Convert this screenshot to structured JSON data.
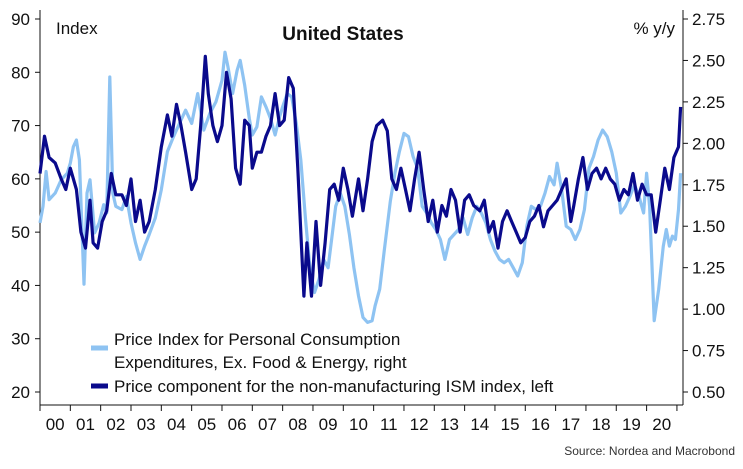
{
  "chart_data": {
    "type": "line",
    "title": "United States",
    "ylabel_left": "Index",
    "ylabel_right": "% y/y",
    "source": "Source: Nordea and Macrobond",
    "left_ylim": [
      20,
      90
    ],
    "right_ylim": [
      0.5,
      2.75
    ],
    "left_ticks": [
      "20",
      "30",
      "40",
      "50",
      "60",
      "70",
      "80",
      "90"
    ],
    "right_ticks": [
      "0.50",
      "0.75",
      "1.00",
      "1.25",
      "1.50",
      "1.75",
      "2.00",
      "2.25",
      "2.50",
      "2.75"
    ],
    "x_ticks": [
      "00",
      "01",
      "02",
      "03",
      "04",
      "05",
      "06",
      "07",
      "08",
      "09",
      "10",
      "11",
      "12",
      "13",
      "14",
      "15",
      "16",
      "17",
      "18",
      "19",
      "20"
    ],
    "xlim": [
      2000.0,
      2021.2
    ],
    "grid": false,
    "legend_position": "bottom-left",
    "series": [
      {
        "name": "Price Index for Personal Consumption Expenditures, Ex. Food & Energy, right",
        "axis": "right",
        "color": "#8ec3f2",
        "points": [
          [
            2000.0,
            1.52
          ],
          [
            2000.1,
            1.62
          ],
          [
            2000.2,
            1.83
          ],
          [
            2000.3,
            1.66
          ],
          [
            2000.5,
            1.7
          ],
          [
            2000.7,
            1.78
          ],
          [
            2000.9,
            1.82
          ],
          [
            2001.0,
            1.88
          ],
          [
            2001.1,
            1.98
          ],
          [
            2001.2,
            2.02
          ],
          [
            2001.3,
            1.9
          ],
          [
            2001.45,
            1.15
          ],
          [
            2001.55,
            1.7
          ],
          [
            2001.65,
            1.78
          ],
          [
            2001.8,
            1.46
          ],
          [
            2001.95,
            1.52
          ],
          [
            2002.1,
            1.63
          ],
          [
            2002.2,
            1.58
          ],
          [
            2002.3,
            2.4
          ],
          [
            2002.4,
            1.7
          ],
          [
            2002.5,
            1.62
          ],
          [
            2002.7,
            1.6
          ],
          [
            2002.85,
            1.68
          ],
          [
            2003.0,
            1.52
          ],
          [
            2003.15,
            1.4
          ],
          [
            2003.3,
            1.3
          ],
          [
            2003.45,
            1.38
          ],
          [
            2003.6,
            1.45
          ],
          [
            2003.8,
            1.55
          ],
          [
            2004.0,
            1.72
          ],
          [
            2004.2,
            1.95
          ],
          [
            2004.4,
            2.04
          ],
          [
            2004.6,
            2.12
          ],
          [
            2004.8,
            2.2
          ],
          [
            2005.0,
            2.12
          ],
          [
            2005.2,
            2.3
          ],
          [
            2005.4,
            2.08
          ],
          [
            2005.6,
            2.18
          ],
          [
            2005.8,
            2.25
          ],
          [
            2006.0,
            2.38
          ],
          [
            2006.1,
            2.55
          ],
          [
            2006.2,
            2.46
          ],
          [
            2006.35,
            2.3
          ],
          [
            2006.5,
            2.44
          ],
          [
            2006.6,
            2.5
          ],
          [
            2006.75,
            2.35
          ],
          [
            2006.9,
            2.15
          ],
          [
            2007.0,
            2.05
          ],
          [
            2007.15,
            2.1
          ],
          [
            2007.3,
            2.28
          ],
          [
            2007.45,
            2.22
          ],
          [
            2007.6,
            2.15
          ],
          [
            2007.75,
            2.05
          ],
          [
            2007.9,
            2.16
          ],
          [
            2008.0,
            2.22
          ],
          [
            2008.15,
            2.3
          ],
          [
            2008.3,
            2.28
          ],
          [
            2008.45,
            2.12
          ],
          [
            2008.6,
            1.9
          ],
          [
            2008.75,
            1.55
          ],
          [
            2008.9,
            1.25
          ],
          [
            2009.05,
            1.1
          ],
          [
            2009.2,
            1.18
          ],
          [
            2009.35,
            1.3
          ],
          [
            2009.5,
            1.25
          ],
          [
            2009.6,
            1.4
          ],
          [
            2009.75,
            1.62
          ],
          [
            2009.9,
            1.7
          ],
          [
            2010.05,
            1.62
          ],
          [
            2010.2,
            1.45
          ],
          [
            2010.35,
            1.25
          ],
          [
            2010.5,
            1.08
          ],
          [
            2010.65,
            0.95
          ],
          [
            2010.8,
            0.92
          ],
          [
            2010.95,
            0.93
          ],
          [
            2011.05,
            1.02
          ],
          [
            2011.2,
            1.12
          ],
          [
            2011.35,
            1.35
          ],
          [
            2011.55,
            1.65
          ],
          [
            2011.7,
            1.82
          ],
          [
            2011.85,
            1.95
          ],
          [
            2012.0,
            2.06
          ],
          [
            2012.15,
            2.04
          ],
          [
            2012.3,
            1.92
          ],
          [
            2012.45,
            1.85
          ],
          [
            2012.6,
            1.62
          ],
          [
            2012.75,
            1.58
          ],
          [
            2012.9,
            1.52
          ],
          [
            2013.05,
            1.48
          ],
          [
            2013.2,
            1.42
          ],
          [
            2013.35,
            1.3
          ],
          [
            2013.5,
            1.42
          ],
          [
            2013.65,
            1.45
          ],
          [
            2013.8,
            1.48
          ],
          [
            2013.95,
            1.55
          ],
          [
            2014.1,
            1.45
          ],
          [
            2014.25,
            1.55
          ],
          [
            2014.4,
            1.62
          ],
          [
            2014.55,
            1.58
          ],
          [
            2014.7,
            1.52
          ],
          [
            2014.85,
            1.42
          ],
          [
            2015.0,
            1.35
          ],
          [
            2015.15,
            1.3
          ],
          [
            2015.3,
            1.28
          ],
          [
            2015.45,
            1.3
          ],
          [
            2015.6,
            1.25
          ],
          [
            2015.75,
            1.2
          ],
          [
            2015.9,
            1.28
          ],
          [
            2016.05,
            1.5
          ],
          [
            2016.2,
            1.62
          ],
          [
            2016.35,
            1.6
          ],
          [
            2016.5,
            1.62
          ],
          [
            2016.65,
            1.7
          ],
          [
            2016.8,
            1.8
          ],
          [
            2016.95,
            1.75
          ],
          [
            2017.05,
            1.88
          ],
          [
            2017.2,
            1.72
          ],
          [
            2017.35,
            1.5
          ],
          [
            2017.5,
            1.48
          ],
          [
            2017.65,
            1.42
          ],
          [
            2017.8,
            1.48
          ],
          [
            2017.95,
            1.6
          ],
          [
            2018.1,
            1.85
          ],
          [
            2018.25,
            1.92
          ],
          [
            2018.4,
            2.02
          ],
          [
            2018.55,
            2.08
          ],
          [
            2018.7,
            2.04
          ],
          [
            2018.85,
            1.95
          ],
          [
            2019.0,
            1.82
          ],
          [
            2019.15,
            1.58
          ],
          [
            2019.3,
            1.62
          ],
          [
            2019.45,
            1.68
          ],
          [
            2019.6,
            1.75
          ],
          [
            2019.75,
            1.68
          ],
          [
            2019.9,
            1.58
          ],
          [
            2020.0,
            1.82
          ],
          [
            2020.1,
            1.62
          ],
          [
            2020.25,
            0.93
          ],
          [
            2020.4,
            1.12
          ],
          [
            2020.55,
            1.38
          ],
          [
            2020.65,
            1.48
          ],
          [
            2020.75,
            1.38
          ],
          [
            2020.85,
            1.44
          ],
          [
            2020.95,
            1.42
          ],
          [
            2021.05,
            1.6
          ],
          [
            2021.12,
            1.82
          ]
        ]
      },
      {
        "name": "Price component for the non-manufacturing ISM index, left",
        "axis": "left",
        "color": "#0a0a8c",
        "points": [
          [
            2000.0,
            61
          ],
          [
            2000.15,
            68
          ],
          [
            2000.3,
            64
          ],
          [
            2000.5,
            63
          ],
          [
            2000.7,
            60
          ],
          [
            2000.85,
            58
          ],
          [
            2001.0,
            62
          ],
          [
            2001.2,
            58
          ],
          [
            2001.35,
            50
          ],
          [
            2001.5,
            47
          ],
          [
            2001.65,
            56
          ],
          [
            2001.75,
            48
          ],
          [
            2001.9,
            47
          ],
          [
            2002.05,
            52
          ],
          [
            2002.2,
            54
          ],
          [
            2002.35,
            61
          ],
          [
            2002.5,
            57
          ],
          [
            2002.7,
            57
          ],
          [
            2002.85,
            55
          ],
          [
            2003.0,
            60
          ],
          [
            2003.15,
            52
          ],
          [
            2003.3,
            56
          ],
          [
            2003.45,
            50
          ],
          [
            2003.6,
            52
          ],
          [
            2003.8,
            58
          ],
          [
            2004.0,
            66
          ],
          [
            2004.2,
            72
          ],
          [
            2004.35,
            68
          ],
          [
            2004.5,
            74
          ],
          [
            2004.65,
            70
          ],
          [
            2004.8,
            65
          ],
          [
            2005.0,
            58
          ],
          [
            2005.15,
            60
          ],
          [
            2005.3,
            70
          ],
          [
            2005.45,
            83
          ],
          [
            2005.55,
            76
          ],
          [
            2005.7,
            70
          ],
          [
            2005.85,
            67
          ],
          [
            2006.0,
            70
          ],
          [
            2006.15,
            80
          ],
          [
            2006.3,
            75
          ],
          [
            2006.45,
            62
          ],
          [
            2006.6,
            59
          ],
          [
            2006.75,
            71
          ],
          [
            2006.9,
            70
          ],
          [
            2007.0,
            62
          ],
          [
            2007.15,
            65
          ],
          [
            2007.3,
            65
          ],
          [
            2007.45,
            68
          ],
          [
            2007.6,
            70
          ],
          [
            2007.75,
            76
          ],
          [
            2007.9,
            70
          ],
          [
            2008.05,
            71
          ],
          [
            2008.2,
            79
          ],
          [
            2008.35,
            77
          ],
          [
            2008.5,
            62
          ],
          [
            2008.6,
            50
          ],
          [
            2008.7,
            38
          ],
          [
            2008.8,
            48
          ],
          [
            2008.95,
            38
          ],
          [
            2009.1,
            52
          ],
          [
            2009.25,
            40
          ],
          [
            2009.4,
            48
          ],
          [
            2009.55,
            58
          ],
          [
            2009.7,
            59
          ],
          [
            2009.85,
            56
          ],
          [
            2010.0,
            62
          ],
          [
            2010.15,
            58
          ],
          [
            2010.3,
            53
          ],
          [
            2010.5,
            60
          ],
          [
            2010.65,
            54
          ],
          [
            2010.8,
            60
          ],
          [
            2010.95,
            67
          ],
          [
            2011.1,
            70
          ],
          [
            2011.3,
            71
          ],
          [
            2011.45,
            69
          ],
          [
            2011.6,
            60
          ],
          [
            2011.75,
            58
          ],
          [
            2011.9,
            62
          ],
          [
            2012.05,
            58
          ],
          [
            2012.2,
            54
          ],
          [
            2012.35,
            60
          ],
          [
            2012.5,
            65
          ],
          [
            2012.65,
            58
          ],
          [
            2012.8,
            52
          ],
          [
            2012.95,
            56
          ],
          [
            2013.1,
            50
          ],
          [
            2013.25,
            55
          ],
          [
            2013.4,
            53
          ],
          [
            2013.55,
            58
          ],
          [
            2013.7,
            56
          ],
          [
            2013.85,
            50
          ],
          [
            2014.0,
            56
          ],
          [
            2014.15,
            57
          ],
          [
            2014.3,
            55
          ],
          [
            2014.5,
            54
          ],
          [
            2014.65,
            56
          ],
          [
            2014.8,
            50
          ],
          [
            2014.95,
            52
          ],
          [
            2015.1,
            47
          ],
          [
            2015.25,
            52
          ],
          [
            2015.4,
            54
          ],
          [
            2015.55,
            52
          ],
          [
            2015.7,
            50
          ],
          [
            2015.85,
            48
          ],
          [
            2016.0,
            49
          ],
          [
            2016.15,
            52
          ],
          [
            2016.3,
            53
          ],
          [
            2016.45,
            55
          ],
          [
            2016.6,
            51
          ],
          [
            2016.75,
            54
          ],
          [
            2016.9,
            55
          ],
          [
            2017.05,
            56
          ],
          [
            2017.2,
            58
          ],
          [
            2017.35,
            60
          ],
          [
            2017.5,
            52
          ],
          [
            2017.6,
            55
          ],
          [
            2017.75,
            60
          ],
          [
            2017.9,
            64
          ],
          [
            2018.05,
            58
          ],
          [
            2018.2,
            61
          ],
          [
            2018.35,
            62
          ],
          [
            2018.5,
            60
          ],
          [
            2018.65,
            62
          ],
          [
            2018.8,
            60
          ],
          [
            2018.95,
            59
          ],
          [
            2019.1,
            56
          ],
          [
            2019.25,
            58
          ],
          [
            2019.4,
            57
          ],
          [
            2019.55,
            61
          ],
          [
            2019.7,
            56
          ],
          [
            2019.85,
            59
          ],
          [
            2020.0,
            57
          ],
          [
            2020.15,
            57
          ],
          [
            2020.3,
            50
          ],
          [
            2020.45,
            56
          ],
          [
            2020.6,
            62
          ],
          [
            2020.75,
            58
          ],
          [
            2020.9,
            64
          ],
          [
            2021.05,
            66
          ],
          [
            2021.12,
            73.5
          ]
        ]
      }
    ]
  }
}
